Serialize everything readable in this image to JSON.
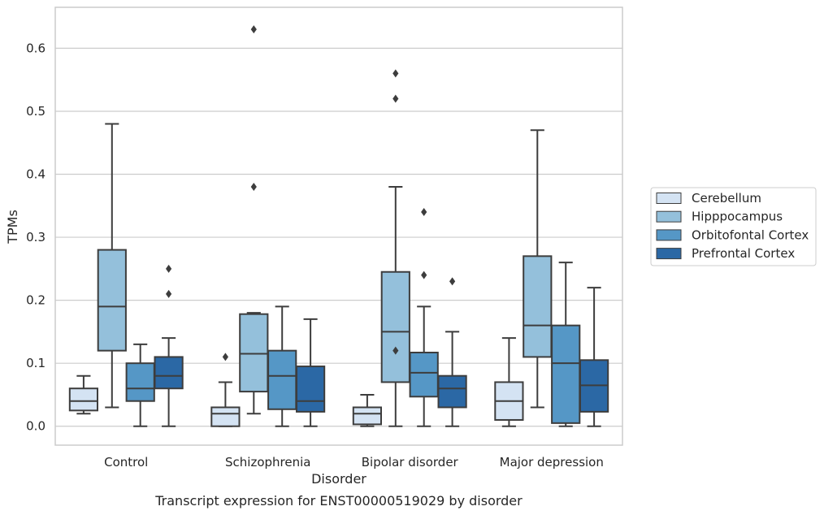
{
  "chart_data": {
    "type": "box",
    "title": "",
    "caption": "Transcript expression for ENST00000519029 by disorder",
    "xlabel": "Disorder",
    "ylabel": "TPMs",
    "ylim": [
      -0.03,
      0.665
    ],
    "yticks": [
      0.0,
      0.1,
      0.2,
      0.3,
      0.4,
      0.5,
      0.6
    ],
    "ytick_labels": [
      "0.0",
      "0.1",
      "0.2",
      "0.3",
      "0.4",
      "0.5",
      "0.6"
    ],
    "grid": "horizontal",
    "legend_position": "right",
    "categories": [
      "Control",
      "Schizophrenia",
      "Bipolar disorder",
      "Major depression"
    ],
    "series": [
      {
        "name": "Cerebellum",
        "color": "#d4e3f3",
        "boxes": [
          {
            "whisker_low": 0.02,
            "q1": 0.025,
            "median": 0.04,
            "q3": 0.06,
            "whisker_high": 0.08,
            "outliers": []
          },
          {
            "whisker_low": 0.0,
            "q1": 0.0,
            "median": 0.02,
            "q3": 0.03,
            "whisker_high": 0.07,
            "outliers": [
              0.11
            ]
          },
          {
            "whisker_low": 0.0,
            "q1": 0.003,
            "median": 0.02,
            "q3": 0.03,
            "whisker_high": 0.05,
            "outliers": []
          },
          {
            "whisker_low": 0.0,
            "q1": 0.01,
            "median": 0.04,
            "q3": 0.07,
            "whisker_high": 0.14,
            "outliers": []
          }
        ]
      },
      {
        "name": "Hipppocampus",
        "color": "#94c0db",
        "boxes": [
          {
            "whisker_low": 0.03,
            "q1": 0.12,
            "median": 0.19,
            "q3": 0.28,
            "whisker_high": 0.48,
            "outliers": []
          },
          {
            "whisker_low": 0.02,
            "q1": 0.055,
            "median": 0.115,
            "q3": 0.178,
            "whisker_high": 0.18,
            "outliers": [
              0.38,
              0.63
            ]
          },
          {
            "whisker_low": 0.0,
            "q1": 0.07,
            "median": 0.15,
            "q3": 0.245,
            "whisker_high": 0.38,
            "outliers": [
              0.12,
              0.52,
              0.56
            ]
          },
          {
            "whisker_low": 0.03,
            "q1": 0.11,
            "median": 0.16,
            "q3": 0.27,
            "whisker_high": 0.47,
            "outliers": []
          }
        ]
      },
      {
        "name": "Orbitofontal Cortex",
        "color": "#5597c6",
        "boxes": [
          {
            "whisker_low": 0.0,
            "q1": 0.04,
            "median": 0.06,
            "q3": 0.1,
            "whisker_high": 0.13,
            "outliers": []
          },
          {
            "whisker_low": 0.0,
            "q1": 0.027,
            "median": 0.08,
            "q3": 0.12,
            "whisker_high": 0.19,
            "outliers": []
          },
          {
            "whisker_low": 0.0,
            "q1": 0.047,
            "median": 0.085,
            "q3": 0.117,
            "whisker_high": 0.19,
            "outliers": [
              0.24,
              0.34
            ]
          },
          {
            "whisker_low": 0.0,
            "q1": 0.005,
            "median": 0.1,
            "q3": 0.16,
            "whisker_high": 0.26,
            "outliers": []
          }
        ]
      },
      {
        "name": "Prefrontal Cortex",
        "color": "#2b68a5",
        "boxes": [
          {
            "whisker_low": 0.0,
            "q1": 0.06,
            "median": 0.08,
            "q3": 0.11,
            "whisker_high": 0.14,
            "outliers": [
              0.21,
              0.25
            ]
          },
          {
            "whisker_low": 0.0,
            "q1": 0.023,
            "median": 0.04,
            "q3": 0.095,
            "whisker_high": 0.17,
            "outliers": []
          },
          {
            "whisker_low": 0.0,
            "q1": 0.03,
            "median": 0.06,
            "q3": 0.08,
            "whisker_high": 0.15,
            "outliers": [
              0.23
            ]
          },
          {
            "whisker_low": 0.0,
            "q1": 0.023,
            "median": 0.065,
            "q3": 0.105,
            "whisker_high": 0.22,
            "outliers": []
          }
        ]
      }
    ],
    "colors": {
      "grid": "#cccccc",
      "frame": "#cccccc",
      "box_line": "#3d3d3d",
      "text": "#262626"
    }
  }
}
